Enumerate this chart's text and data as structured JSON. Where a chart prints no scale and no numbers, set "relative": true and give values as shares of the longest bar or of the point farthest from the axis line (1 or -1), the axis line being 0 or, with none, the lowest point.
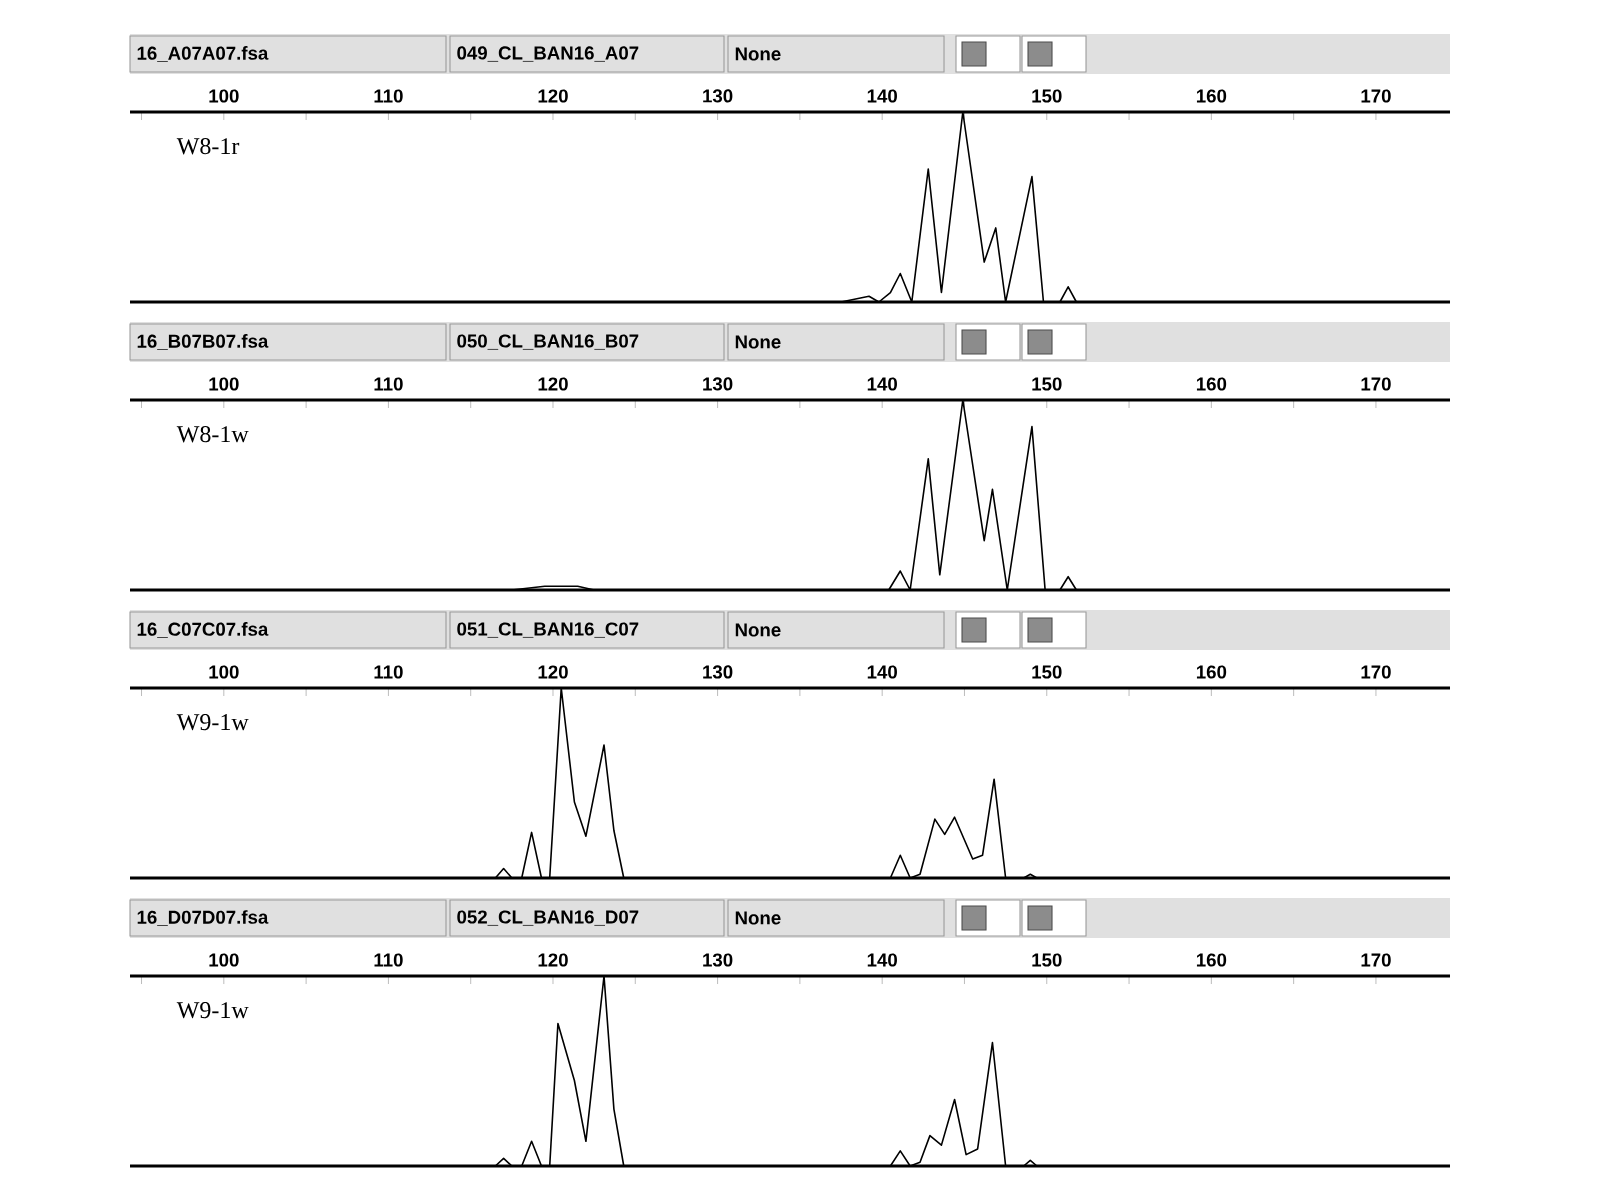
{
  "chart_data": [
    {
      "type": "line",
      "relative": true,
      "annotations": [
        "16_A07A07.fsa",
        "049_CL_BAN16_A07",
        "None"
      ],
      "xlim": [
        94.3,
        174.5
      ],
      "xticks": [
        {
          "value": 95,
          "label": null
        },
        100,
        {
          "value": 105,
          "label": null
        },
        110,
        {
          "value": 115,
          "label": null
        },
        120,
        {
          "value": 125,
          "label": null
        },
        130,
        {
          "value": 135,
          "label": null
        },
        140,
        {
          "value": 145,
          "label": null
        },
        150,
        {
          "value": 155,
          "label": null
        },
        160,
        {
          "value": 165,
          "label": null
        },
        170
      ],
      "series": [
        {
          "name": "W8-1r",
          "color": "#000000",
          "x": [
            94.3,
            137.5,
            139.2,
            139.8,
            140.5,
            141.1,
            141.8,
            142.8,
            143.6,
            144.9,
            146.2,
            146.9,
            147.5,
            149.1,
            149.8,
            150.8,
            151.3,
            151.8,
            174.5
          ],
          "values": [
            0,
            0,
            0.03,
            0,
            0.05,
            0.15,
            0,
            0.7,
            0.05,
            1.0,
            0.21,
            0.39,
            0,
            0.66,
            0,
            0,
            0.08,
            0,
            0
          ]
        }
      ]
    },
    {
      "type": "line",
      "relative": true,
      "annotations": [
        "16_B07B07.fsa",
        "050_CL_BAN16_B07",
        "None"
      ],
      "xlim": [
        94.3,
        174.5
      ],
      "xticks": [
        {
          "value": 95,
          "label": null
        },
        100,
        {
          "value": 105,
          "label": null
        },
        110,
        {
          "value": 115,
          "label": null
        },
        120,
        {
          "value": 125,
          "label": null
        },
        130,
        {
          "value": 135,
          "label": null
        },
        140,
        {
          "value": 145,
          "label": null
        },
        150,
        {
          "value": 155,
          "label": null
        },
        160,
        {
          "value": 165,
          "label": null
        },
        170
      ],
      "series": [
        {
          "name": "W8-1w",
          "color": "#000000",
          "x": [
            94.3,
            117.5,
            119.5,
            121.5,
            122.5,
            140.4,
            141.1,
            141.7,
            142.8,
            143.5,
            144.9,
            146.2,
            146.7,
            147.6,
            149.1,
            149.9,
            150.8,
            151.3,
            151.8,
            174.5
          ],
          "values": [
            0,
            0,
            0.02,
            0.02,
            0,
            0,
            0.1,
            0,
            0.69,
            0.08,
            1.0,
            0.26,
            0.53,
            0,
            0.86,
            0,
            0,
            0.07,
            0,
            0
          ]
        }
      ]
    },
    {
      "type": "line",
      "relative": true,
      "annotations": [
        "16_C07C07.fsa",
        "051_CL_BAN16_C07",
        "None"
      ],
      "xlim": [
        94.3,
        174.5
      ],
      "xticks": [
        {
          "value": 95,
          "label": null
        },
        100,
        {
          "value": 105,
          "label": null
        },
        110,
        {
          "value": 115,
          "label": null
        },
        120,
        {
          "value": 125,
          "label": null
        },
        130,
        {
          "value": 135,
          "label": null
        },
        140,
        {
          "value": 145,
          "label": null
        },
        150,
        {
          "value": 155,
          "label": null
        },
        160,
        {
          "value": 165,
          "label": null
        },
        170
      ],
      "series": [
        {
          "name": "W9-1w",
          "color": "#000000",
          "x": [
            94.3,
            116.5,
            117.0,
            117.5,
            118.1,
            118.7,
            119.3,
            119.8,
            120.5,
            121.3,
            122.0,
            123.1,
            123.7,
            124.3,
            140.5,
            141.1,
            141.7,
            142.3,
            143.2,
            143.8,
            144.4,
            145.5,
            146.1,
            146.8,
            147.5,
            148.6,
            149.0,
            149.4,
            174.5
          ],
          "values": [
            0,
            0,
            0.05,
            0,
            0,
            0.24,
            0,
            0,
            1.0,
            0.4,
            0.22,
            0.7,
            0.25,
            0,
            0,
            0.12,
            0,
            0.02,
            0.31,
            0.23,
            0.32,
            0.1,
            0.12,
            0.52,
            0,
            0,
            0.02,
            0,
            0
          ]
        }
      ]
    },
    {
      "type": "line",
      "relative": true,
      "annotations": [
        "16_D07D07.fsa",
        "052_CL_BAN16_D07",
        "None"
      ],
      "xlim": [
        94.3,
        174.5
      ],
      "xticks": [
        {
          "value": 95,
          "label": null
        },
        100,
        {
          "value": 105,
          "label": null
        },
        110,
        {
          "value": 115,
          "label": null
        },
        120,
        {
          "value": 125,
          "label": null
        },
        130,
        {
          "value": 135,
          "label": null
        },
        140,
        {
          "value": 145,
          "label": null
        },
        150,
        {
          "value": 155,
          "label": null
        },
        160,
        {
          "value": 165,
          "label": null
        },
        170
      ],
      "series": [
        {
          "name": "W9-1w",
          "color": "#000000",
          "x": [
            94.3,
            116.5,
            117.0,
            117.5,
            118.1,
            118.7,
            119.3,
            119.8,
            120.3,
            121.3,
            122.0,
            123.1,
            123.7,
            124.3,
            140.5,
            141.1,
            141.7,
            142.3,
            142.9,
            143.6,
            144.4,
            145.1,
            145.8,
            146.7,
            147.5,
            148.6,
            149.0,
            149.4,
            174.5
          ],
          "values": [
            0,
            0,
            0.04,
            0,
            0,
            0.13,
            0,
            0,
            0.75,
            0.45,
            0.13,
            1.0,
            0.3,
            0,
            0,
            0.08,
            0,
            0.02,
            0.16,
            0.11,
            0.35,
            0.06,
            0.09,
            0.65,
            0,
            0,
            0.03,
            0,
            0
          ]
        }
      ]
    }
  ]
}
